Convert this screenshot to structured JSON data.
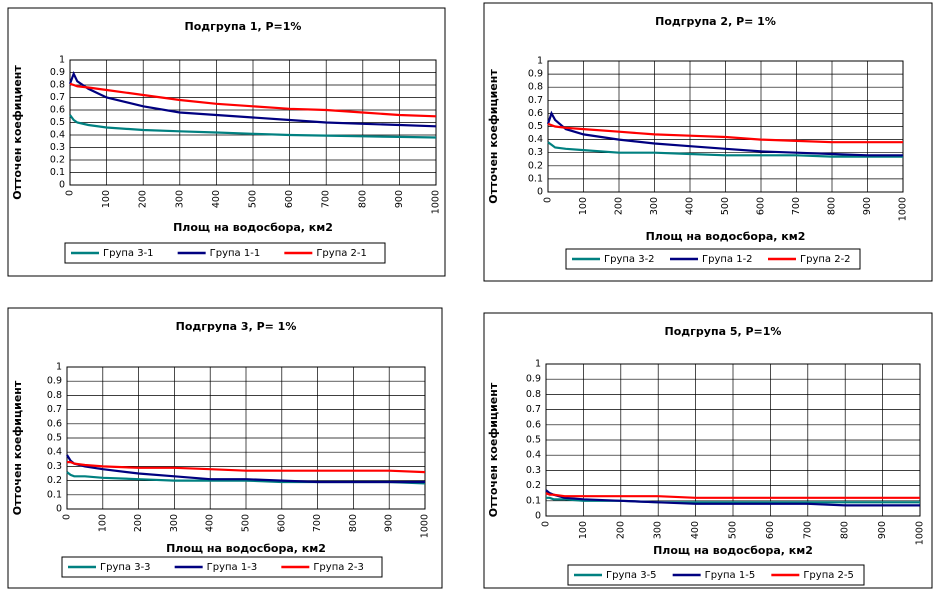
{
  "chart_data": [
    {
      "type": "line",
      "title": "Подгрупа 1, P=1%",
      "x_label": "Площ на водосбора, км2",
      "y_label": "Отточен коефициент",
      "x": [
        0,
        10,
        20,
        50,
        100,
        200,
        300,
        400,
        500,
        600,
        700,
        800,
        900,
        1000
      ],
      "series": [
        {
          "name": "Група 3-1",
          "color": "#008080",
          "values": [
            0.56,
            0.52,
            0.5,
            0.48,
            0.46,
            0.44,
            0.43,
            0.42,
            0.41,
            0.4,
            0.395,
            0.39,
            0.385,
            0.38
          ]
        },
        {
          "name": "Група 1-1",
          "color": "#000080",
          "values": [
            0.81,
            0.89,
            0.83,
            0.77,
            0.7,
            0.63,
            0.58,
            0.56,
            0.54,
            0.52,
            0.5,
            0.49,
            0.48,
            0.47
          ]
        },
        {
          "name": "Група 2-1",
          "color": "#ff0000",
          "values": [
            0.81,
            0.8,
            0.79,
            0.78,
            0.76,
            0.72,
            0.68,
            0.65,
            0.63,
            0.61,
            0.6,
            0.58,
            0.56,
            0.55
          ]
        }
      ],
      "xlim": [
        0,
        1000
      ],
      "xticks": [
        0,
        100,
        200,
        300,
        400,
        500,
        600,
        700,
        800,
        900,
        1000
      ],
      "ylim": [
        0,
        1
      ],
      "yticks": [
        0,
        0.1,
        0.2,
        0.3,
        0.4,
        0.5,
        0.6,
        0.7,
        0.8,
        0.9,
        1
      ],
      "grid": true,
      "legend": "bottom"
    },
    {
      "type": "line",
      "title": "Подгрупа 2, P= 1%",
      "x_label": "Площ на водосбора, км2",
      "y_label": "Отточен коефициент",
      "x": [
        0,
        10,
        20,
        50,
        100,
        200,
        300,
        400,
        500,
        600,
        700,
        800,
        900,
        1000
      ],
      "series": [
        {
          "name": "Група 3-2",
          "color": "#008080",
          "values": [
            0.38,
            0.36,
            0.34,
            0.33,
            0.32,
            0.3,
            0.3,
            0.29,
            0.28,
            0.28,
            0.28,
            0.27,
            0.27,
            0.27
          ]
        },
        {
          "name": "Група 1-2",
          "color": "#000080",
          "values": [
            0.52,
            0.6,
            0.55,
            0.48,
            0.44,
            0.4,
            0.37,
            0.35,
            0.33,
            0.31,
            0.3,
            0.29,
            0.28,
            0.28
          ]
        },
        {
          "name": "Група 2-2",
          "color": "#ff0000",
          "values": [
            0.52,
            0.51,
            0.5,
            0.49,
            0.48,
            0.46,
            0.44,
            0.43,
            0.42,
            0.4,
            0.39,
            0.38,
            0.38,
            0.38
          ]
        }
      ],
      "xlim": [
        0,
        1000
      ],
      "xticks": [
        0,
        100,
        200,
        300,
        400,
        500,
        600,
        700,
        800,
        900,
        1000
      ],
      "ylim": [
        0,
        1
      ],
      "yticks": [
        0,
        0.1,
        0.2,
        0.3,
        0.4,
        0.5,
        0.6,
        0.7,
        0.8,
        0.9,
        1
      ],
      "grid": true,
      "legend": "bottom"
    },
    {
      "type": "line",
      "title": "Подгрупа 3, P= 1%",
      "x_label": "Площ на водосбора, км2",
      "y_label": "Отточен коефициент",
      "x": [
        0,
        10,
        20,
        50,
        100,
        200,
        300,
        400,
        500,
        600,
        700,
        800,
        900,
        1000
      ],
      "series": [
        {
          "name": "Група 3-3",
          "color": "#008080",
          "values": [
            0.26,
            0.24,
            0.23,
            0.23,
            0.22,
            0.21,
            0.2,
            0.2,
            0.2,
            0.19,
            0.19,
            0.19,
            0.19,
            0.18
          ]
        },
        {
          "name": "Група 1-3",
          "color": "#000080",
          "values": [
            0.38,
            0.34,
            0.32,
            0.3,
            0.28,
            0.25,
            0.23,
            0.21,
            0.21,
            0.2,
            0.19,
            0.19,
            0.19,
            0.19
          ]
        },
        {
          "name": "Група 2-3",
          "color": "#ff0000",
          "values": [
            0.33,
            0.33,
            0.32,
            0.31,
            0.3,
            0.29,
            0.29,
            0.28,
            0.27,
            0.27,
            0.27,
            0.27,
            0.27,
            0.26
          ]
        }
      ],
      "xlim": [
        0,
        1000
      ],
      "xticks": [
        0,
        100,
        200,
        300,
        400,
        500,
        600,
        700,
        800,
        900,
        1000
      ],
      "ylim": [
        0,
        1
      ],
      "yticks": [
        0,
        0.1,
        0.2,
        0.3,
        0.4,
        0.5,
        0.6,
        0.7,
        0.8,
        0.9,
        1
      ],
      "grid": true,
      "legend": "bottom"
    },
    {
      "type": "line",
      "title": "Подгрупа 5, P=1%",
      "x_label": "Площ на водосбора, км2",
      "y_label": "Отточен коефициент",
      "x": [
        0,
        10,
        20,
        50,
        100,
        200,
        300,
        400,
        500,
        600,
        700,
        800,
        900,
        1000
      ],
      "series": [
        {
          "name": "Група 3-5",
          "color": "#008080",
          "values": [
            0.12,
            0.12,
            0.11,
            0.11,
            0.1,
            0.1,
            0.09,
            0.09,
            0.09,
            0.09,
            0.09,
            0.09,
            0.09,
            0.09
          ]
        },
        {
          "name": "Група 1-5",
          "color": "#000080",
          "values": [
            0.17,
            0.15,
            0.14,
            0.12,
            0.11,
            0.1,
            0.09,
            0.08,
            0.08,
            0.08,
            0.08,
            0.07,
            0.07,
            0.07
          ]
        },
        {
          "name": "Група 2-5",
          "color": "#ff0000",
          "values": [
            0.15,
            0.14,
            0.14,
            0.13,
            0.13,
            0.13,
            0.13,
            0.12,
            0.12,
            0.12,
            0.12,
            0.12,
            0.12,
            0.12
          ]
        }
      ],
      "xlim": [
        0,
        1000
      ],
      "xticks": [
        0,
        100,
        200,
        300,
        400,
        500,
        600,
        700,
        800,
        900,
        1000
      ],
      "ylim": [
        0,
        1
      ],
      "yticks": [
        0,
        0.1,
        0.2,
        0.3,
        0.4,
        0.5,
        0.6,
        0.7,
        0.8,
        0.9,
        1
      ],
      "grid": true,
      "legend": "bottom"
    }
  ]
}
